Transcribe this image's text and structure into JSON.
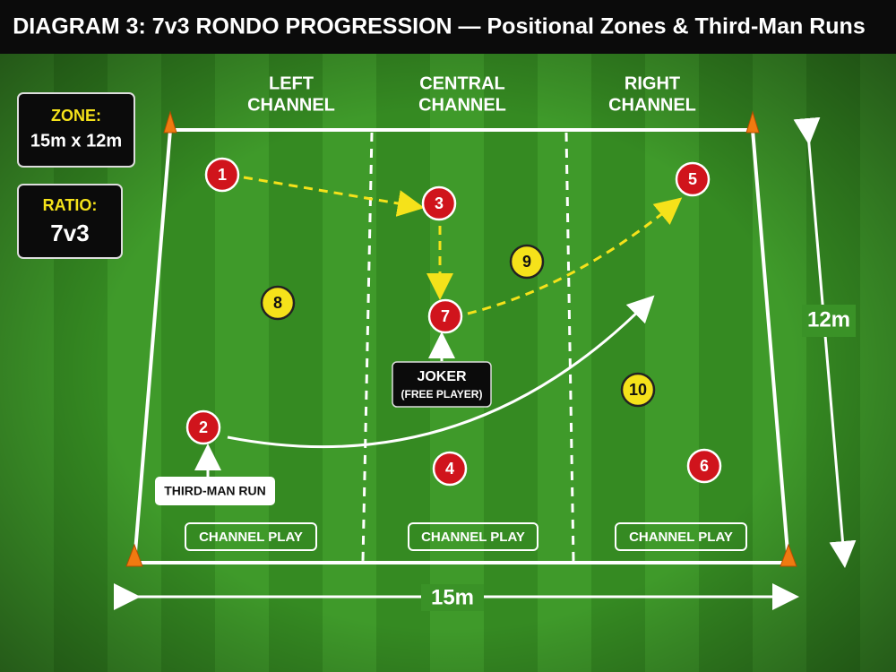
{
  "title": "DIAGRAM 3: 7v3 RONDO PROGRESSION — Positional Zones & Third-Man Runs",
  "info_boxes": [
    {
      "label": "ZONE:",
      "value": "15m x 12m"
    },
    {
      "label": "RATIO:",
      "value": "7v3"
    }
  ],
  "channels": [
    {
      "label_lines": [
        "LEFT",
        "CHANNEL"
      ],
      "footer": "CHANNEL PLAY"
    },
    {
      "label_lines": [
        "CENTRAL",
        "CHANNEL"
      ],
      "footer": "CHANNEL PLAY"
    },
    {
      "label_lines": [
        "RIGHT",
        "CHANNEL"
      ],
      "footer": "CHANNEL PLAY"
    }
  ],
  "players": [
    {
      "label": "1",
      "color": "#d0141c"
    },
    {
      "label": "2",
      "color": "#d0141c"
    },
    {
      "label": "3",
      "color": "#d0141c"
    },
    {
      "label": "4",
      "color": "#d0141c"
    },
    {
      "label": "5",
      "color": "#d0141c"
    },
    {
      "label": "6",
      "color": "#d0141c"
    },
    {
      "label": "7",
      "color": "#d0141c"
    },
    {
      "label": "8",
      "color": "#f5e21a"
    },
    {
      "label": "9",
      "color": "#f5e21a"
    },
    {
      "label": "10",
      "color": "#f5e21a"
    }
  ],
  "callouts": {
    "joker": [
      "JOKER",
      "(FREE PLAYER)"
    ],
    "third_man": "THIRD-MAN RUN"
  },
  "dimensions": {
    "width": "15m",
    "length": "12m"
  }
}
